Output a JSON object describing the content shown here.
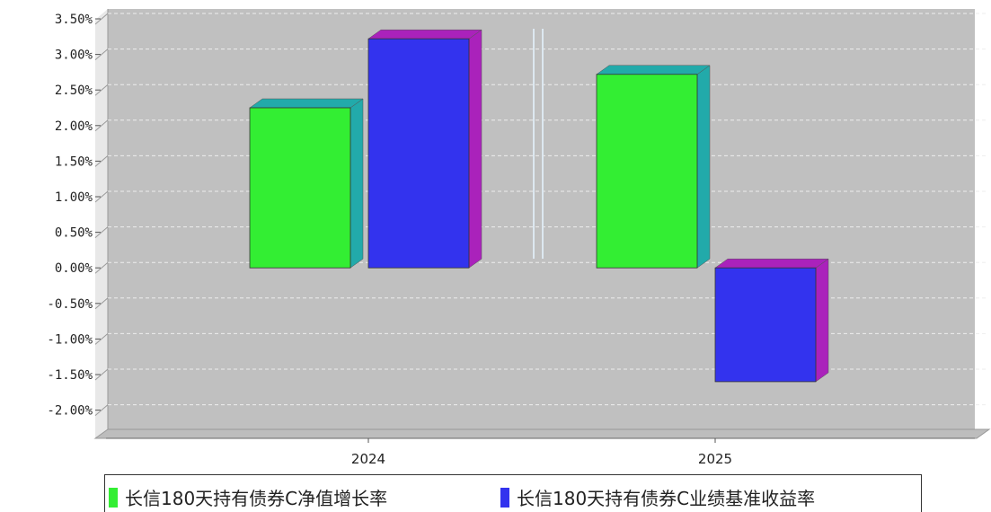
{
  "chart_data": {
    "type": "bar",
    "categories": [
      "2024",
      "2025"
    ],
    "series": [
      {
        "name": "长信180天持有债券C净值增长率",
        "values": [
          2.25,
          2.72
        ],
        "color": "#33ee33",
        "side_color": "#22aaaa"
      },
      {
        "name": "长信180天持有债券C业绩基准收益率",
        "values": [
          3.22,
          -1.6
        ],
        "color": "#3333ee",
        "side_color": "#aa22bb"
      }
    ],
    "y_ticks": [
      "3.50%",
      "3.00%",
      "2.50%",
      "2.00%",
      "1.50%",
      "1.00%",
      "0.50%",
      "0.00%",
      "-0.50%",
      "-1.00%",
      "-1.50%",
      "-2.00%"
    ],
    "ylim": [
      -2.25,
      3.5
    ],
    "grid": true,
    "background": "#c0c0c0",
    "legend_position": "bottom"
  }
}
